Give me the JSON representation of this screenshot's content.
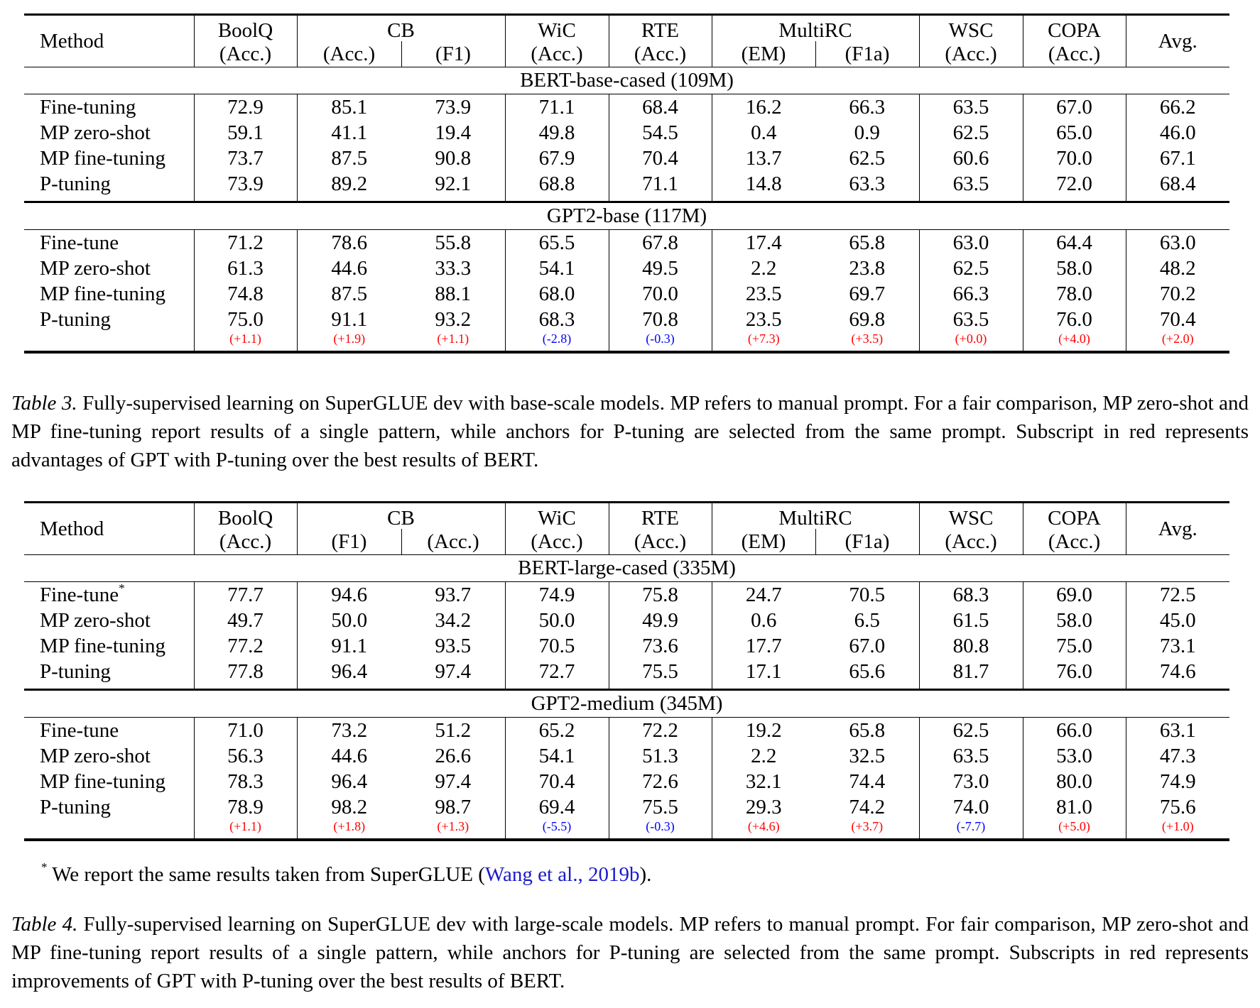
{
  "colors": {
    "positive": "#ff0000",
    "negative": "#0000ff",
    "link": "#1a1acc"
  },
  "tables": [
    {
      "id": "table3",
      "header": {
        "method": "Method",
        "groups": [
          {
            "name": "BoolQ",
            "subs": [
              "(Acc.)"
            ]
          },
          {
            "name": "CB",
            "subs": [
              "(Acc.)",
              "(F1)"
            ]
          },
          {
            "name": "WiC",
            "subs": [
              "(Acc.)"
            ]
          },
          {
            "name": "RTE",
            "subs": [
              "(Acc.)"
            ]
          },
          {
            "name": "MultiRC",
            "subs": [
              "(EM)",
              "(F1a)"
            ]
          },
          {
            "name": "WSC",
            "subs": [
              "(Acc.)"
            ]
          },
          {
            "name": "COPA",
            "subs": [
              "(Acc.)"
            ]
          }
        ],
        "avg": "Avg."
      },
      "sections": [
        {
          "title": "BERT-base-cased (109M)",
          "rows": [
            {
              "method": "Fine-tuning",
              "mark": "",
              "values": [
                "72.9",
                "85.1",
                "73.9",
                "71.1",
                "68.4",
                "16.2",
                "66.3",
                "63.5",
                "67.0",
                "66.2"
              ]
            },
            {
              "method": "MP zero-shot",
              "mark": "",
              "values": [
                "59.1",
                "41.1",
                "19.4",
                "49.8",
                "54.5",
                "0.4",
                "0.9",
                "62.5",
                "65.0",
                "46.0"
              ]
            },
            {
              "method": "MP fine-tuning",
              "mark": "",
              "values": [
                "73.7",
                "87.5",
                "90.8",
                "67.9",
                "70.4",
                "13.7",
                "62.5",
                "60.6",
                "70.0",
                "67.1"
              ]
            },
            {
              "method": "P-tuning",
              "mark": "",
              "values": [
                "73.9",
                "89.2",
                "92.1",
                "68.8",
                "71.1",
                "14.8",
                "63.3",
                "63.5",
                "72.0",
                "68.4"
              ]
            }
          ],
          "deltas": []
        },
        {
          "title": "GPT2-base (117M)",
          "rows": [
            {
              "method": "Fine-tune",
              "mark": "",
              "values": [
                "71.2",
                "78.6",
                "55.8",
                "65.5",
                "67.8",
                "17.4",
                "65.8",
                "63.0",
                "64.4",
                "63.0"
              ]
            },
            {
              "method": "MP zero-shot",
              "mark": "",
              "values": [
                "61.3",
                "44.6",
                "33.3",
                "54.1",
                "49.5",
                "2.2",
                "23.8",
                "62.5",
                "58.0",
                "48.2"
              ]
            },
            {
              "method": "MP fine-tuning",
              "mark": "",
              "values": [
                "74.8",
                "87.5",
                "88.1",
                "68.0",
                "70.0",
                "23.5",
                "69.7",
                "66.3",
                "78.0",
                "70.2"
              ]
            },
            {
              "method": "P-tuning",
              "mark": "",
              "values": [
                "75.0",
                "91.1",
                "93.2",
                "68.3",
                "70.8",
                "23.5",
                "69.8",
                "63.5",
                "76.0",
                "70.4"
              ]
            }
          ],
          "deltas": [
            {
              "text": "(+1.1)",
              "sign": "positive"
            },
            {
              "text": "(+1.9)",
              "sign": "positive"
            },
            {
              "text": "(+1.1)",
              "sign": "positive"
            },
            {
              "text": "(-2.8)",
              "sign": "negative"
            },
            {
              "text": "(-0.3)",
              "sign": "negative"
            },
            {
              "text": "(+7.3)",
              "sign": "positive"
            },
            {
              "text": "(+3.5)",
              "sign": "positive"
            },
            {
              "text": "(+0.0)",
              "sign": "positive"
            },
            {
              "text": "(+4.0)",
              "sign": "positive"
            },
            {
              "text": "(+2.0)",
              "sign": "positive"
            }
          ]
        }
      ],
      "caption": {
        "label": "Table 3.",
        "text": " Fully-supervised learning on SuperGLUE dev with base-scale models. MP refers to manual prompt. For a fair comparison, MP zero-shot and MP fine-tuning report results of a single pattern, while anchors for P-tuning are selected from the same prompt. Subscript in red represents advantages of GPT with P-tuning over the best results of BERT."
      }
    },
    {
      "id": "table4",
      "header": {
        "method": "Method",
        "groups": [
          {
            "name": "BoolQ",
            "subs": [
              "(Acc.)"
            ]
          },
          {
            "name": "CB",
            "subs": [
              "(F1)",
              "(Acc.)"
            ]
          },
          {
            "name": "WiC",
            "subs": [
              "(Acc.)"
            ]
          },
          {
            "name": "RTE",
            "subs": [
              "(Acc.)"
            ]
          },
          {
            "name": "MultiRC",
            "subs": [
              "(EM)",
              "(F1a)"
            ]
          },
          {
            "name": "WSC",
            "subs": [
              "(Acc.)"
            ]
          },
          {
            "name": "COPA",
            "subs": [
              "(Acc.)"
            ]
          }
        ],
        "avg": "Avg."
      },
      "sections": [
        {
          "title": "BERT-large-cased (335M)",
          "rows": [
            {
              "method": "Fine-tune",
              "mark": "*",
              "values": [
                "77.7",
                "94.6",
                "93.7",
                "74.9",
                "75.8",
                "24.7",
                "70.5",
                "68.3",
                "69.0",
                "72.5"
              ]
            },
            {
              "method": "MP zero-shot",
              "mark": "",
              "values": [
                "49.7",
                "50.0",
                "34.2",
                "50.0",
                "49.9",
                "0.6",
                "6.5",
                "61.5",
                "58.0",
                "45.0"
              ]
            },
            {
              "method": "MP fine-tuning",
              "mark": "",
              "values": [
                "77.2",
                "91.1",
                "93.5",
                "70.5",
                "73.6",
                "17.7",
                "67.0",
                "80.8",
                "75.0",
                "73.1"
              ]
            },
            {
              "method": "P-tuning",
              "mark": "",
              "values": [
                "77.8",
                "96.4",
                "97.4",
                "72.7",
                "75.5",
                "17.1",
                "65.6",
                "81.7",
                "76.0",
                "74.6"
              ]
            }
          ],
          "deltas": []
        },
        {
          "title": "GPT2-medium (345M)",
          "rows": [
            {
              "method": "Fine-tune",
              "mark": "",
              "values": [
                "71.0",
                "73.2",
                "51.2",
                "65.2",
                "72.2",
                "19.2",
                "65.8",
                "62.5",
                "66.0",
                "63.1"
              ]
            },
            {
              "method": "MP zero-shot",
              "mark": "",
              "values": [
                "56.3",
                "44.6",
                "26.6",
                "54.1",
                "51.3",
                "2.2",
                "32.5",
                "63.5",
                "53.0",
                "47.3"
              ]
            },
            {
              "method": "MP fine-tuning",
              "mark": "",
              "values": [
                "78.3",
                "96.4",
                "97.4",
                "70.4",
                "72.6",
                "32.1",
                "74.4",
                "73.0",
                "80.0",
                "74.9"
              ]
            },
            {
              "method": "P-tuning",
              "mark": "",
              "values": [
                "78.9",
                "98.2",
                "98.7",
                "69.4",
                "75.5",
                "29.3",
                "74.2",
                "74.0",
                "81.0",
                "75.6"
              ]
            }
          ],
          "deltas": [
            {
              "text": "(+1.1)",
              "sign": "positive"
            },
            {
              "text": "(+1.8)",
              "sign": "positive"
            },
            {
              "text": "(+1.3)",
              "sign": "positive"
            },
            {
              "text": "(-5.5)",
              "sign": "negative"
            },
            {
              "text": "(-0.3)",
              "sign": "negative"
            },
            {
              "text": "(+4.6)",
              "sign": "positive"
            },
            {
              "text": "(+3.7)",
              "sign": "positive"
            },
            {
              "text": "(-7.7)",
              "sign": "negative"
            },
            {
              "text": "(+5.0)",
              "sign": "positive"
            },
            {
              "text": "(+1.0)",
              "sign": "positive"
            }
          ]
        }
      ],
      "footnote": {
        "mark": "*",
        "text": " We report the same results taken from SuperGLUE (",
        "link": "Wang et al., 2019b",
        "end": ")."
      },
      "caption": {
        "label": "Table 4.",
        "text": " Fully-supervised learning on SuperGLUE dev with large-scale models. MP refers to manual prompt. For fair comparison, MP zero-shot and MP fine-tuning report results of a single pattern, while anchors for P-tuning are selected from the same prompt. Subscripts in red represents improvements of GPT with P-tuning over the best results of BERT."
      }
    }
  ]
}
